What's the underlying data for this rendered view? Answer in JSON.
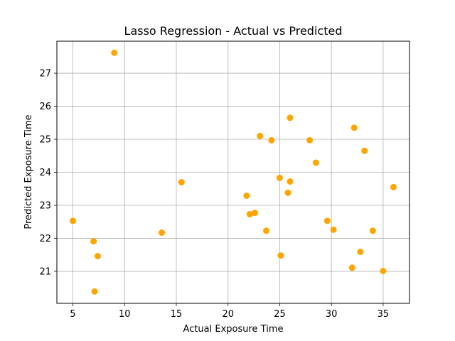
{
  "chart_data": {
    "type": "scatter",
    "title": "Lasso Regression - Actual vs Predicted",
    "xlabel": "Actual Exposure Time",
    "ylabel": "Predicted Exposure Time",
    "xlim": [
      3.45,
      37.55
    ],
    "ylim": [
      20.03,
      27.97
    ],
    "xticks": [
      5,
      10,
      15,
      20,
      25,
      30,
      35
    ],
    "yticks": [
      21,
      22,
      23,
      24,
      25,
      26,
      27
    ],
    "grid": true,
    "color": "#ffa500",
    "points": [
      {
        "x": 9.0,
        "y": 27.62
      },
      {
        "x": 5.0,
        "y": 22.53
      },
      {
        "x": 7.0,
        "y": 21.91
      },
      {
        "x": 7.4,
        "y": 21.46
      },
      {
        "x": 7.1,
        "y": 20.39
      },
      {
        "x": 13.6,
        "y": 22.17
      },
      {
        "x": 15.5,
        "y": 23.7
      },
      {
        "x": 21.8,
        "y": 23.29
      },
      {
        "x": 22.1,
        "y": 22.73
      },
      {
        "x": 22.6,
        "y": 22.77
      },
      {
        "x": 23.1,
        "y": 25.1
      },
      {
        "x": 23.7,
        "y": 22.23
      },
      {
        "x": 24.2,
        "y": 24.97
      },
      {
        "x": 25.0,
        "y": 23.83
      },
      {
        "x": 25.1,
        "y": 21.48
      },
      {
        "x": 25.8,
        "y": 23.38
      },
      {
        "x": 26.0,
        "y": 23.72
      },
      {
        "x": 26.0,
        "y": 25.65
      },
      {
        "x": 27.9,
        "y": 24.97
      },
      {
        "x": 28.5,
        "y": 24.29
      },
      {
        "x": 29.6,
        "y": 22.53
      },
      {
        "x": 30.2,
        "y": 22.26
      },
      {
        "x": 32.0,
        "y": 21.11
      },
      {
        "x": 32.2,
        "y": 25.35
      },
      {
        "x": 32.8,
        "y": 21.59
      },
      {
        "x": 33.2,
        "y": 24.65
      },
      {
        "x": 34.0,
        "y": 22.23
      },
      {
        "x": 35.0,
        "y": 21.01
      },
      {
        "x": 36.0,
        "y": 23.55
      }
    ]
  }
}
